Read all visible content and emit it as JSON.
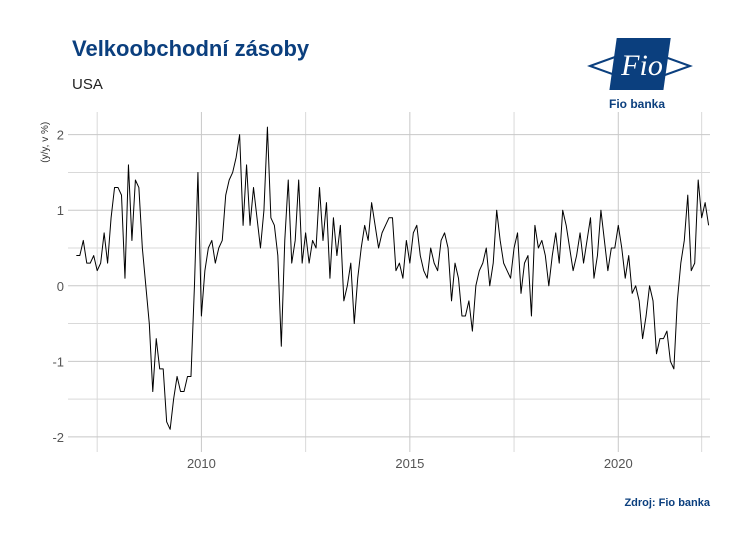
{
  "header": {
    "title": "Velkoobchodní zásoby",
    "subtitle": "USA"
  },
  "logo": {
    "text": "Fio",
    "caption": "Fio banka",
    "color": "#0b3f7e"
  },
  "footer": {
    "source": "Zdroj: Fio banka"
  },
  "chart_data": {
    "type": "line",
    "title": "Velkoobchodní zásoby",
    "subtitle": "USA",
    "ylabel": "(y/y, v %)",
    "xlabel": "",
    "ylim": [
      -2.2,
      2.3
    ],
    "xlim": [
      2006.8,
      2022.2
    ],
    "x_ticks": [
      2010,
      2015,
      2020
    ],
    "x_tick_labels": [
      "2010",
      "2015",
      "2020"
    ],
    "y_ticks": [
      -2,
      -1,
      0,
      1,
      2
    ],
    "y_tick_labels": [
      "-2",
      "-1",
      "0",
      "1",
      "2"
    ],
    "grid": true,
    "legend": "none",
    "line_color": "#000000",
    "series": [
      {
        "x_start": "2007-01",
        "frequency": "monthly",
        "values": [
          0.4,
          0.4,
          0.6,
          0.3,
          0.3,
          0.4,
          0.2,
          0.3,
          0.7,
          0.3,
          0.9,
          1.3,
          1.3,
          1.2,
          0.1,
          1.6,
          0.6,
          1.4,
          1.3,
          0.5,
          0.0,
          -0.5,
          -1.4,
          -0.7,
          -1.1,
          -1.1,
          -1.8,
          -1.9,
          -1.5,
          -1.2,
          -1.4,
          -1.4,
          -1.2,
          -1.2,
          0.0,
          1.5,
          -0.4,
          0.2,
          0.5,
          0.6,
          0.3,
          0.5,
          0.6,
          1.2,
          1.4,
          1.5,
          1.7,
          2.0,
          0.8,
          1.6,
          0.8,
          1.3,
          0.9,
          0.5,
          1.0,
          2.1,
          0.9,
          0.8,
          0.4,
          -0.8,
          0.6,
          1.4,
          0.3,
          0.6,
          1.4,
          0.3,
          0.7,
          0.3,
          0.6,
          0.5,
          1.3,
          0.6,
          1.1,
          0.1,
          0.9,
          0.4,
          0.8,
          -0.2,
          0.0,
          0.3,
          -0.5,
          0.1,
          0.5,
          0.8,
          0.6,
          1.1,
          0.8,
          0.5,
          0.7,
          0.8,
          0.9,
          0.9,
          0.2,
          0.3,
          0.1,
          0.6,
          0.3,
          0.7,
          0.8,
          0.4,
          0.2,
          0.1,
          0.5,
          0.3,
          0.2,
          0.6,
          0.7,
          0.5,
          -0.2,
          0.3,
          0.1,
          -0.4,
          -0.4,
          -0.2,
          -0.6,
          0.0,
          0.2,
          0.3,
          0.5,
          0.0,
          0.3,
          1.0,
          0.6,
          0.3,
          0.2,
          0.1,
          0.5,
          0.7,
          -0.1,
          0.3,
          0.4,
          -0.4,
          0.8,
          0.5,
          0.6,
          0.4,
          0.0,
          0.4,
          0.7,
          0.3,
          1.0,
          0.8,
          0.5,
          0.2,
          0.4,
          0.7,
          0.3,
          0.6,
          0.9,
          0.1,
          0.4,
          1.0,
          0.6,
          0.2,
          0.5,
          0.5,
          0.8,
          0.5,
          0.1,
          0.4,
          -0.1,
          0.0,
          -0.2,
          -0.7,
          -0.4,
          0.0,
          -0.2,
          -0.9,
          -0.7,
          -0.7,
          -0.6,
          -1.0,
          -1.1,
          -0.2,
          0.3,
          0.6,
          1.2,
          0.2,
          0.3,
          1.4,
          0.9,
          1.1,
          0.8
        ]
      }
    ]
  }
}
